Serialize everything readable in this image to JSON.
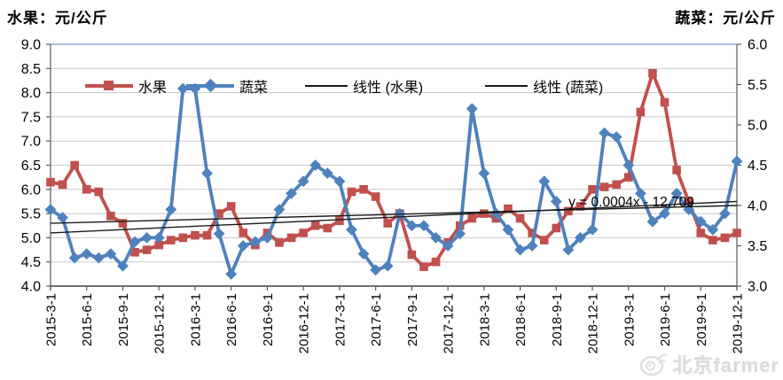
{
  "header": {
    "left_title": "水果：元/公斤",
    "right_title": "蔬菜：元/公斤"
  },
  "legend": {
    "items": [
      {
        "label": "水果"
      },
      {
        "label": "蔬菜"
      },
      {
        "label": "线性 (水果)"
      },
      {
        "label": "线性 (蔬菜)"
      }
    ]
  },
  "annotation": {
    "trendline_equation": "y = 0.0004x - 12.709"
  },
  "watermark": {
    "icon": "weibo-eye-icon",
    "text": "北京farmer"
  },
  "chart_data": {
    "type": "line",
    "title": "",
    "legend_position": "top-inside",
    "grid": true,
    "left_axis": {
      "label": "水果：元/公斤",
      "min": 4.0,
      "max": 9.0,
      "step": 0.5,
      "tick_labels": [
        "9.0",
        "8.5",
        "8.0",
        "7.5",
        "7.0",
        "6.5",
        "6.0",
        "5.5",
        "5.0",
        "4.5",
        "4.0"
      ]
    },
    "right_axis": {
      "label": "蔬菜：元/公斤",
      "min": 3.0,
      "max": 6.0,
      "step": 0.5,
      "tick_labels": [
        "6.0",
        "5.5",
        "5.0",
        "4.5",
        "4.0",
        "3.5",
        "3.0"
      ]
    },
    "tick_interval": 3,
    "x_tick_labels": [
      "2015-3-1",
      "2015-6-1",
      "2015-9-1",
      "2015-12-1",
      "2016-3-1",
      "2016-6-1",
      "2016-9-1",
      "2016-12-1",
      "2017-3-1",
      "2017-6-1",
      "2017-9-1",
      "2017-12-1",
      "2018-3-1",
      "2018-6-1",
      "2018-9-1",
      "2018-12-1",
      "2019-3-1",
      "2019-6-1",
      "2019-9-1",
      "2019-12-1"
    ],
    "months": [
      "2015-3",
      "2015-4",
      "2015-5",
      "2015-6",
      "2015-7",
      "2015-8",
      "2015-9",
      "2015-10",
      "2015-11",
      "2015-12",
      "2016-1",
      "2016-2",
      "2016-3",
      "2016-4",
      "2016-5",
      "2016-6",
      "2016-7",
      "2016-8",
      "2016-9",
      "2016-10",
      "2016-11",
      "2016-12",
      "2017-1",
      "2017-2",
      "2017-3",
      "2017-4",
      "2017-5",
      "2017-6",
      "2017-7",
      "2017-8",
      "2017-9",
      "2017-10",
      "2017-11",
      "2017-12",
      "2018-1",
      "2018-2",
      "2018-3",
      "2018-4",
      "2018-5",
      "2018-6",
      "2018-7",
      "2018-8",
      "2018-9",
      "2018-10",
      "2018-11",
      "2018-12",
      "2019-1",
      "2019-2",
      "2019-3",
      "2019-4",
      "2019-5",
      "2019-6",
      "2019-7",
      "2019-8",
      "2019-9",
      "2019-10",
      "2019-11",
      "2019-12"
    ],
    "series": [
      {
        "name": "水果",
        "axis": "left",
        "color": "#C0504D",
        "marker": "square",
        "values": [
          6.15,
          6.1,
          6.5,
          6.0,
          5.95,
          5.45,
          5.3,
          4.7,
          4.75,
          4.85,
          4.95,
          5.0,
          5.05,
          5.05,
          5.5,
          5.65,
          5.1,
          4.85,
          5.1,
          4.9,
          5.0,
          5.1,
          5.25,
          5.2,
          5.35,
          5.95,
          6.0,
          5.85,
          5.3,
          5.5,
          4.65,
          4.4,
          4.5,
          4.9,
          5.25,
          5.4,
          5.5,
          5.4,
          5.6,
          5.4,
          5.1,
          4.95,
          5.2,
          5.55,
          5.65,
          6.0,
          6.05,
          6.1,
          6.25,
          7.6,
          8.4,
          7.8,
          6.4,
          5.75,
          5.1,
          4.95,
          5.0,
          5.1
        ]
      },
      {
        "name": "蔬菜",
        "axis": "right",
        "color": "#4F81BD",
        "marker": "diamond",
        "values": [
          3.95,
          3.85,
          3.35,
          3.4,
          3.35,
          3.4,
          3.25,
          3.55,
          3.6,
          3.6,
          3.95,
          5.45,
          5.45,
          4.4,
          3.65,
          3.15,
          3.5,
          3.55,
          3.6,
          3.95,
          4.15,
          4.3,
          4.5,
          4.4,
          4.3,
          3.7,
          3.4,
          3.2,
          3.25,
          3.9,
          3.75,
          3.75,
          3.6,
          3.5,
          3.65,
          5.2,
          4.4,
          3.9,
          3.7,
          3.45,
          3.5,
          4.3,
          4.05,
          3.45,
          3.6,
          3.7,
          4.9,
          4.85,
          4.5,
          4.15,
          3.8,
          3.9,
          4.15,
          3.95,
          3.8,
          3.7,
          3.9,
          4.55
        ]
      }
    ],
    "trendlines": [
      {
        "name": "线性 (水果)",
        "axis": "left",
        "start": 5.1,
        "end": 5.75,
        "color": "#1a1a1a"
      },
      {
        "name": "线性 (蔬菜)",
        "axis": "right",
        "start": 3.78,
        "end": 4.0,
        "color": "#1a1a1a"
      }
    ],
    "annotation": {
      "text": "y = 0.0004x - 12.709",
      "x": 712,
      "y": 233
    }
  }
}
